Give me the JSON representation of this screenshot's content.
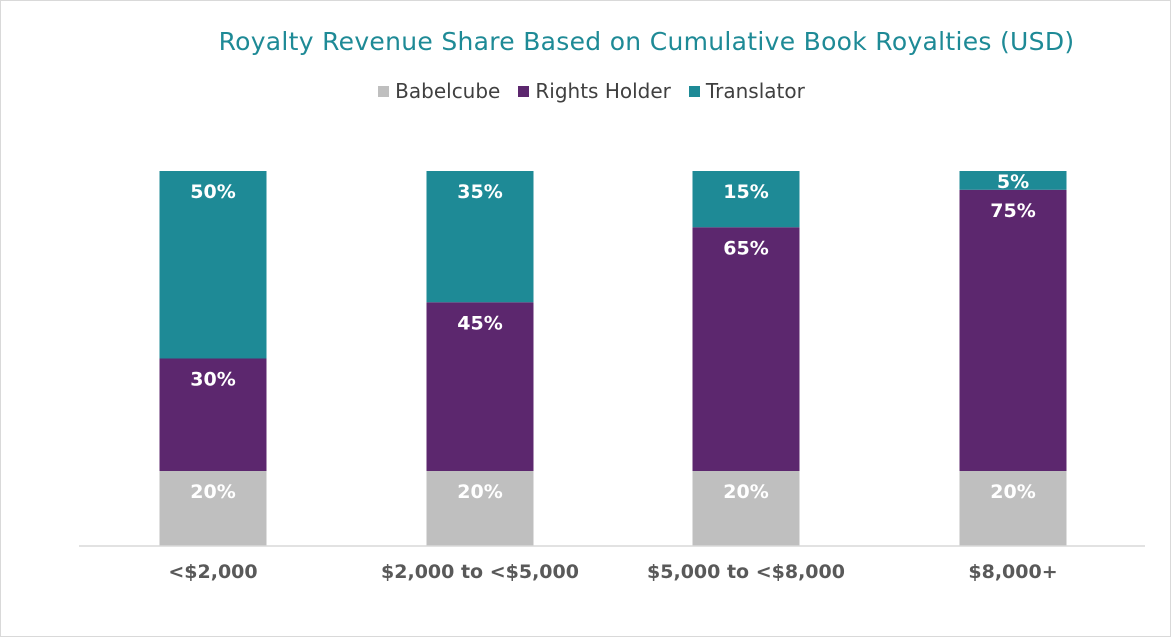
{
  "chart_data": {
    "type": "bar",
    "stacked": true,
    "title": "Royalty Revenue Share Based on Cumulative Book Royalties (USD)",
    "categories": [
      "<$2,000",
      "$2,000 to <$5,000",
      "$5,000 to <$8,000",
      "$8,000+"
    ],
    "series": [
      {
        "name": "Babelcube",
        "values": [
          20,
          20,
          20,
          20
        ],
        "labels": [
          "20%",
          "20%",
          "20%",
          "20%"
        ],
        "color": "#bfbfbf"
      },
      {
        "name": "Rights Holder",
        "values": [
          30,
          45,
          65,
          75
        ],
        "labels": [
          "30%",
          "45%",
          "65%",
          "75%"
        ],
        "color": "#5c276e"
      },
      {
        "name": "Translator",
        "values": [
          50,
          35,
          15,
          5
        ],
        "labels": [
          "50%",
          "35%",
          "15%",
          "5%"
        ],
        "color": "#1e8a96"
      }
    ],
    "ylim": [
      0,
      100
    ],
    "unit": "%",
    "legend_position": "top",
    "grid": false
  }
}
